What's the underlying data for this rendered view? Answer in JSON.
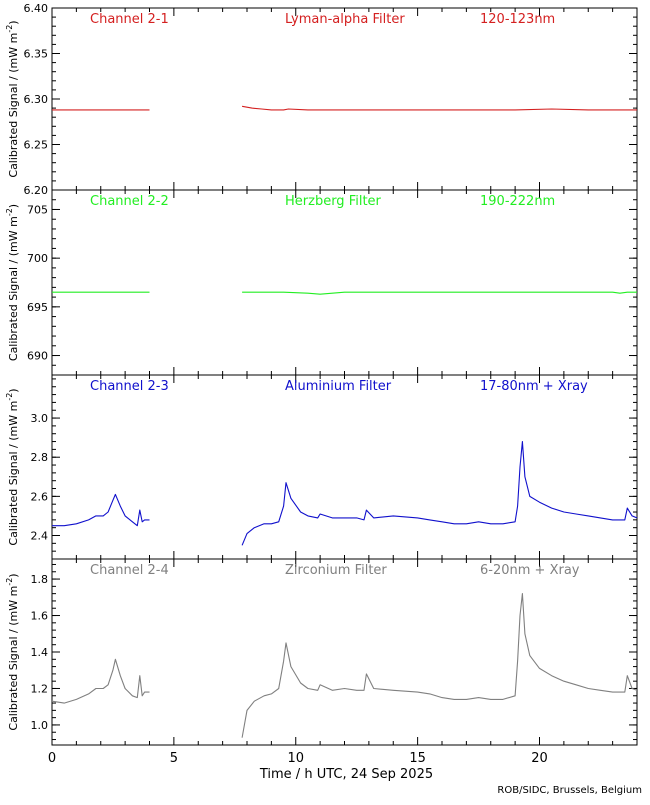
{
  "xaxis": {
    "label": "Time / h UTC, 24 Sep 2025",
    "xlim": [
      0,
      24
    ],
    "ticks": [
      0,
      5,
      10,
      15,
      20
    ],
    "tick_labels": [
      "0",
      "5",
      "10",
      "15",
      "20"
    ]
  },
  "footer": "ROB/SIDC, Brussels, Belgium",
  "ylabel_text": "Calibrated Signal / (mW m",
  "ylabel_sup": "-2",
  "ylabel_close": ")",
  "chart_data": [
    {
      "type": "line",
      "channel": "Channel 2-1",
      "filter": "Lyman-alpha Filter",
      "band": "120-123nm",
      "color": "#d42020",
      "ylim": [
        6.2,
        6.4
      ],
      "yticks": [
        6.2,
        6.25,
        6.3,
        6.35,
        6.4
      ],
      "ytick_labels": [
        "6.20",
        "6.25",
        "6.30",
        "6.35",
        "6.40"
      ],
      "segments": [
        {
          "x": [
            0.0,
            4.0
          ],
          "y": [
            6.288,
            6.288
          ]
        },
        {
          "x": [
            7.8,
            8.2,
            8.6,
            9.0,
            9.5,
            9.7,
            10.5,
            13.0,
            16.0,
            19.0,
            20.5,
            22.0,
            23.0,
            24.0
          ],
          "y": [
            6.292,
            6.29,
            6.289,
            6.288,
            6.288,
            6.289,
            6.288,
            6.288,
            6.288,
            6.288,
            6.289,
            6.288,
            6.288,
            6.288
          ]
        }
      ]
    },
    {
      "type": "line",
      "channel": "Channel 2-2",
      "filter": "Herzberg Filter",
      "band": "190-222nm",
      "color": "#22ee22",
      "ylim": [
        688,
        707
      ],
      "yticks": [
        690,
        695,
        700,
        705
      ],
      "ytick_labels": [
        "690",
        "695",
        "700",
        "705"
      ],
      "segments": [
        {
          "x": [
            0.0,
            4.0
          ],
          "y": [
            696.5,
            696.5
          ]
        },
        {
          "x": [
            7.8,
            9.5,
            10.5,
            11.0,
            11.5,
            12.0,
            16.0,
            20.0,
            23.0,
            23.3,
            23.6,
            24.0
          ],
          "y": [
            696.5,
            696.5,
            696.4,
            696.3,
            696.4,
            696.5,
            696.5,
            696.5,
            696.5,
            696.4,
            696.5,
            696.5
          ]
        }
      ]
    },
    {
      "type": "line",
      "channel": "Channel 2-3",
      "filter": "Aluminium Filter",
      "band": "17-80nm + Xray",
      "color": "#1010cc",
      "ylim": [
        2.28,
        3.22
      ],
      "yticks": [
        2.4,
        2.6,
        2.8,
        3.0
      ],
      "ytick_labels": [
        "2.4",
        "2.6",
        "2.8",
        "3.0"
      ],
      "segments": [
        {
          "x": [
            0.0,
            0.5,
            1.0,
            1.5,
            1.8,
            2.1,
            2.3,
            2.5,
            2.6,
            2.8,
            3.0,
            3.3,
            3.5,
            3.6,
            3.7,
            3.8,
            4.0
          ],
          "y": [
            2.45,
            2.45,
            2.46,
            2.48,
            2.5,
            2.5,
            2.52,
            2.58,
            2.61,
            2.55,
            2.5,
            2.47,
            2.45,
            2.53,
            2.47,
            2.48,
            2.48
          ]
        },
        {
          "x": [
            7.8,
            8.0,
            8.3,
            8.7,
            9.0,
            9.3,
            9.5,
            9.6,
            9.8,
            10.2,
            10.5,
            10.9,
            11.0,
            11.5,
            12.0,
            12.5,
            12.8,
            12.9,
            13.2,
            14.0,
            15.0,
            15.5,
            16.0,
            16.5,
            17.0,
            17.5,
            18.0,
            18.5,
            19.0,
            19.1,
            19.2,
            19.3,
            19.4,
            19.6,
            20.0,
            20.5,
            21.0,
            21.5,
            22.0,
            22.5,
            23.0,
            23.3,
            23.5,
            23.6,
            23.8,
            24.0
          ],
          "y": [
            2.35,
            2.41,
            2.44,
            2.46,
            2.46,
            2.47,
            2.55,
            2.67,
            2.59,
            2.52,
            2.5,
            2.49,
            2.51,
            2.49,
            2.49,
            2.49,
            2.48,
            2.53,
            2.49,
            2.5,
            2.49,
            2.48,
            2.47,
            2.46,
            2.46,
            2.47,
            2.46,
            2.46,
            2.47,
            2.55,
            2.75,
            2.88,
            2.7,
            2.6,
            2.57,
            2.54,
            2.52,
            2.51,
            2.5,
            2.49,
            2.48,
            2.48,
            2.48,
            2.54,
            2.5,
            2.49
          ]
        }
      ]
    },
    {
      "type": "line",
      "channel": "Channel 2-4",
      "filter": "Zirconium Filter",
      "band": "6-20nm + Xray",
      "color": "#808080",
      "ylim": [
        0.89,
        1.91
      ],
      "yticks": [
        1.0,
        1.2,
        1.4,
        1.6,
        1.8
      ],
      "ytick_labels": [
        "1.0",
        "1.2",
        "1.4",
        "1.6",
        "1.8"
      ],
      "segments": [
        {
          "x": [
            0.0,
            0.5,
            1.0,
            1.5,
            1.8,
            2.1,
            2.3,
            2.5,
            2.6,
            2.8,
            3.0,
            3.3,
            3.5,
            3.6,
            3.7,
            3.8,
            4.0
          ],
          "y": [
            1.13,
            1.12,
            1.14,
            1.17,
            1.2,
            1.2,
            1.22,
            1.3,
            1.36,
            1.27,
            1.2,
            1.16,
            1.15,
            1.27,
            1.16,
            1.18,
            1.18
          ]
        },
        {
          "x": [
            7.8,
            8.0,
            8.3,
            8.7,
            9.0,
            9.3,
            9.5,
            9.6,
            9.8,
            10.2,
            10.5,
            10.9,
            11.0,
            11.5,
            12.0,
            12.5,
            12.8,
            12.9,
            13.2,
            14.0,
            15.0,
            15.5,
            16.0,
            16.5,
            17.0,
            17.5,
            18.0,
            18.5,
            19.0,
            19.1,
            19.2,
            19.3,
            19.4,
            19.6,
            20.0,
            20.5,
            21.0,
            21.5,
            22.0,
            22.5,
            23.0,
            23.3,
            23.5,
            23.6,
            23.8,
            24.0
          ],
          "y": [
            0.93,
            1.08,
            1.13,
            1.16,
            1.17,
            1.2,
            1.35,
            1.45,
            1.32,
            1.23,
            1.2,
            1.19,
            1.22,
            1.19,
            1.2,
            1.19,
            1.19,
            1.28,
            1.2,
            1.19,
            1.18,
            1.17,
            1.15,
            1.14,
            1.14,
            1.15,
            1.14,
            1.14,
            1.16,
            1.35,
            1.6,
            1.72,
            1.5,
            1.38,
            1.31,
            1.27,
            1.24,
            1.22,
            1.2,
            1.19,
            1.18,
            1.18,
            1.18,
            1.27,
            1.2,
            1.19
          ]
        }
      ]
    }
  ]
}
